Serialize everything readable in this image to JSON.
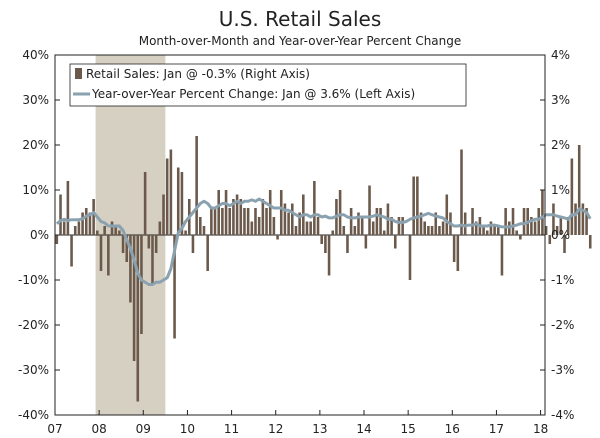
{
  "chart_data": {
    "type": "bar+line",
    "title": "U.S. Retail Sales",
    "subtitle": "Month-over-Month and Year-over-Year Percent Change",
    "x_tick_labels": [
      "07",
      "08",
      "09",
      "10",
      "11",
      "12",
      "13",
      "14",
      "15",
      "16",
      "17",
      "18"
    ],
    "x_range_years": [
      2007.0,
      2018.1
    ],
    "left_axis": {
      "ticks": [
        "40%",
        "30%",
        "20%",
        "10%",
        "0%",
        "-10%",
        "-20%",
        "-30%",
        "-40%"
      ],
      "ylim": [
        -40,
        40
      ]
    },
    "right_axis": {
      "ticks": [
        "4%",
        "3%",
        "2%",
        "1%",
        "0%",
        "-1%",
        "-2%",
        "-3%",
        "-4%"
      ],
      "ylim": [
        -4,
        4
      ]
    },
    "recession_shading": {
      "start": 2007.92,
      "end": 2009.5
    },
    "grid": false,
    "legend_position": "top-left",
    "series": [
      {
        "name": "Retail Sales: Jan @ -0.3% (Right Axis)",
        "kind": "bar",
        "axis": "right",
        "color": "#6b5a4c",
        "start": "2007-01",
        "values": [
          -0.2,
          0.9,
          0.3,
          1.2,
          -0.7,
          0.2,
          0.3,
          0.5,
          0.6,
          0.5,
          0.8,
          0.1,
          -0.8,
          0.2,
          -0.9,
          0.3,
          0.2,
          0.1,
          -0.4,
          -0.6,
          -1.5,
          -2.8,
          -3.7,
          -2.2,
          1.4,
          -0.3,
          -1.1,
          -0.4,
          0.3,
          0.9,
          1.7,
          1.9,
          -2.3,
          1.5,
          1.4,
          0.1,
          0.8,
          -0.4,
          2.2,
          0.4,
          0.2,
          -0.8,
          0.6,
          0.6,
          1.0,
          0.6,
          1.0,
          0.6,
          0.8,
          0.9,
          0.8,
          0.6,
          0.6,
          0.3,
          0.6,
          0.4,
          0.8,
          0.6,
          1.0,
          0.4,
          -0.1,
          1.0,
          0.7,
          0.5,
          0.7,
          0.2,
          0.5,
          0.9,
          0.3,
          0.3,
          1.2,
          0.4,
          -0.2,
          -0.4,
          -0.9,
          0.1,
          0.8,
          1.0,
          0.2,
          -0.4,
          0.6,
          0.2,
          0.5,
          0.4,
          -0.3,
          1.1,
          0.3,
          0.6,
          0.6,
          0.1,
          0.7,
          0.4,
          -0.3,
          0.4,
          0.4,
          0.0,
          -1.0,
          1.3,
          1.3,
          0.5,
          0.3,
          0.2,
          0.2,
          0.5,
          0.2,
          0.3,
          0.9,
          0.5,
          -0.6,
          -0.8,
          1.9,
          0.5,
          0.0,
          0.6,
          0.3,
          0.4,
          0.2,
          0.1,
          0.3,
          0.2,
          0.2,
          -0.9,
          0.6,
          0.3,
          0.6,
          0.1,
          -0.1,
          0.6,
          0.6,
          0.4,
          0.3,
          0.6,
          1.0,
          0.2,
          -0.2,
          0.7,
          0.2,
          0.4,
          -0.4,
          0.4,
          1.7,
          0.7,
          2.0,
          0.7,
          0.6,
          -0.3
        ]
      },
      {
        "name": "Year-over-Year Percent Change: Jan @ 3.6% (Left Axis)",
        "kind": "line",
        "axis": "left",
        "color": "#8aa2b0",
        "start": "2007-01",
        "values": [
          2.5,
          3.2,
          3.5,
          3.2,
          3.4,
          3.4,
          3.4,
          3.6,
          4.2,
          4.5,
          5.0,
          4.0,
          3.0,
          2.7,
          2.0,
          2.0,
          2.0,
          2.0,
          1.0,
          -1.0,
          -3.0,
          -5.5,
          -8.5,
          -10.0,
          -10.5,
          -11.0,
          -11.0,
          -10.5,
          -10.5,
          -10.0,
          -9.5,
          -7.5,
          -3.5,
          0.5,
          1.5,
          3.0,
          4.0,
          5.0,
          6.0,
          7.0,
          7.5,
          7.0,
          6.0,
          6.0,
          6.5,
          7.0,
          7.0,
          6.5,
          7.0,
          7.5,
          7.0,
          7.5,
          7.5,
          7.8,
          7.5,
          8.0,
          7.5,
          7.0,
          6.5,
          6.0,
          6.0,
          6.0,
          5.5,
          5.5,
          5.0,
          4.5,
          4.0,
          4.5,
          4.5,
          4.0,
          4.5,
          4.5,
          4.0,
          4.2,
          3.8,
          3.8,
          4.2,
          4.5,
          4.5,
          4.0,
          3.8,
          3.8,
          4.0,
          4.0,
          4.0,
          4.0,
          4.2,
          4.5,
          4.2,
          4.0,
          3.5,
          3.5,
          3.0,
          2.8,
          2.8,
          3.0,
          3.5,
          3.8,
          4.0,
          4.2,
          4.5,
          4.8,
          4.5,
          4.2,
          4.0,
          3.8,
          3.0,
          2.5,
          2.0,
          2.0,
          2.2,
          2.0,
          2.2,
          2.2,
          2.5,
          2.0,
          2.0,
          2.0,
          2.2,
          2.2,
          2.0,
          1.8,
          1.8,
          1.8,
          2.0,
          2.2,
          2.5,
          2.5,
          2.8,
          3.2,
          3.5,
          3.5,
          4.0,
          4.5,
          4.5,
          4.5,
          4.2,
          4.0,
          3.8,
          3.5,
          4.5,
          4.5,
          5.8,
          5.5,
          5.0,
          3.6
        ]
      }
    ]
  }
}
